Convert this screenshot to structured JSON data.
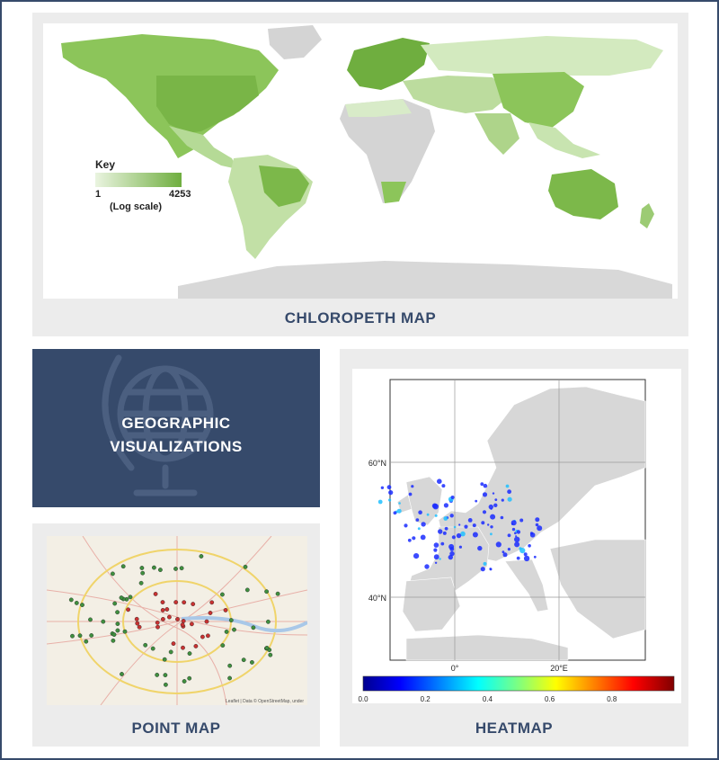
{
  "title": {
    "line1": "GEOGRAPHIC",
    "line2": "VISUALIZATIONS"
  },
  "colors": {
    "navy": "#364a6b",
    "panel": "#ececec",
    "map_green": "#7cb84a",
    "land_gray": "#d4d4d4"
  },
  "choropleth": {
    "caption": "CHLOROPETH MAP",
    "key_title": "Key",
    "key_min": "1",
    "key_max": "4253",
    "key_scale": "(Log scale)"
  },
  "point_map": {
    "caption": "POINT MAP",
    "attribution": "Leaflet | Data © OpenStreetMap, under"
  },
  "heatmap": {
    "caption": "HEATMAP",
    "lat_labels": [
      "60°N",
      "40°N"
    ],
    "lon_labels": [
      "0°",
      "20°E"
    ],
    "colorbar_ticks": [
      "0.0",
      "0.2",
      "0.4",
      "0.6",
      "0.8"
    ]
  }
}
